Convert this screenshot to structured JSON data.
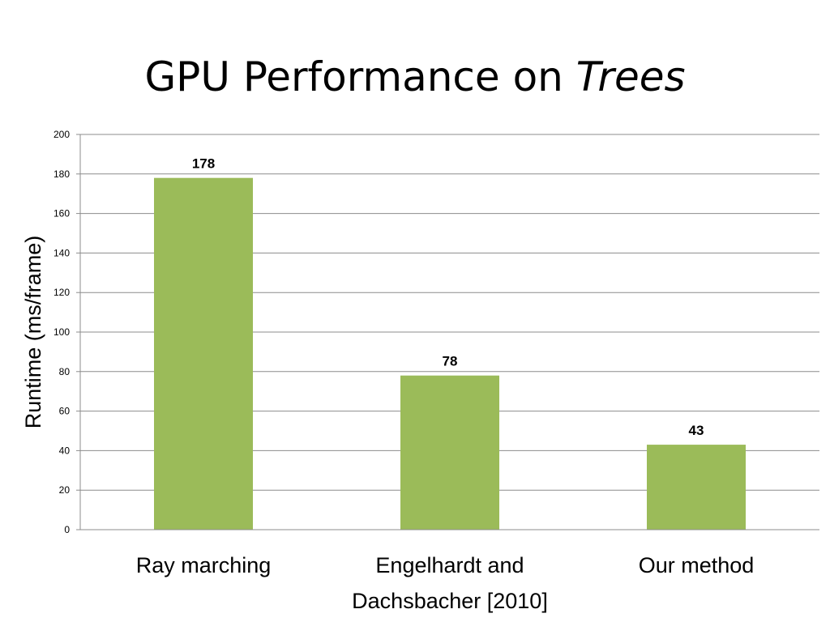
{
  "title": {
    "text": "GPU Performance on ",
    "italic_text": "Trees"
  },
  "colors": {
    "bar": "#9BBB59",
    "gridline": "#8C8C8C",
    "axis": "#8C8C8C",
    "text": "#000000"
  },
  "chart_data": {
    "type": "bar",
    "title": "GPU Performance on Trees",
    "xlabel": "",
    "ylabel": "Runtime (ms/frame)",
    "categories": [
      [
        "Ray marching"
      ],
      [
        "Engelhardt and",
        "Dachsbacher [2010]"
      ],
      [
        "Our method"
      ]
    ],
    "values": [
      178,
      78,
      43
    ],
    "data_labels": [
      "178",
      "78",
      "43"
    ],
    "ylim": [
      0,
      200
    ],
    "yticks": [
      0,
      20,
      40,
      60,
      80,
      100,
      120,
      140,
      160,
      180,
      200
    ],
    "grid": true,
    "legend": "none"
  }
}
